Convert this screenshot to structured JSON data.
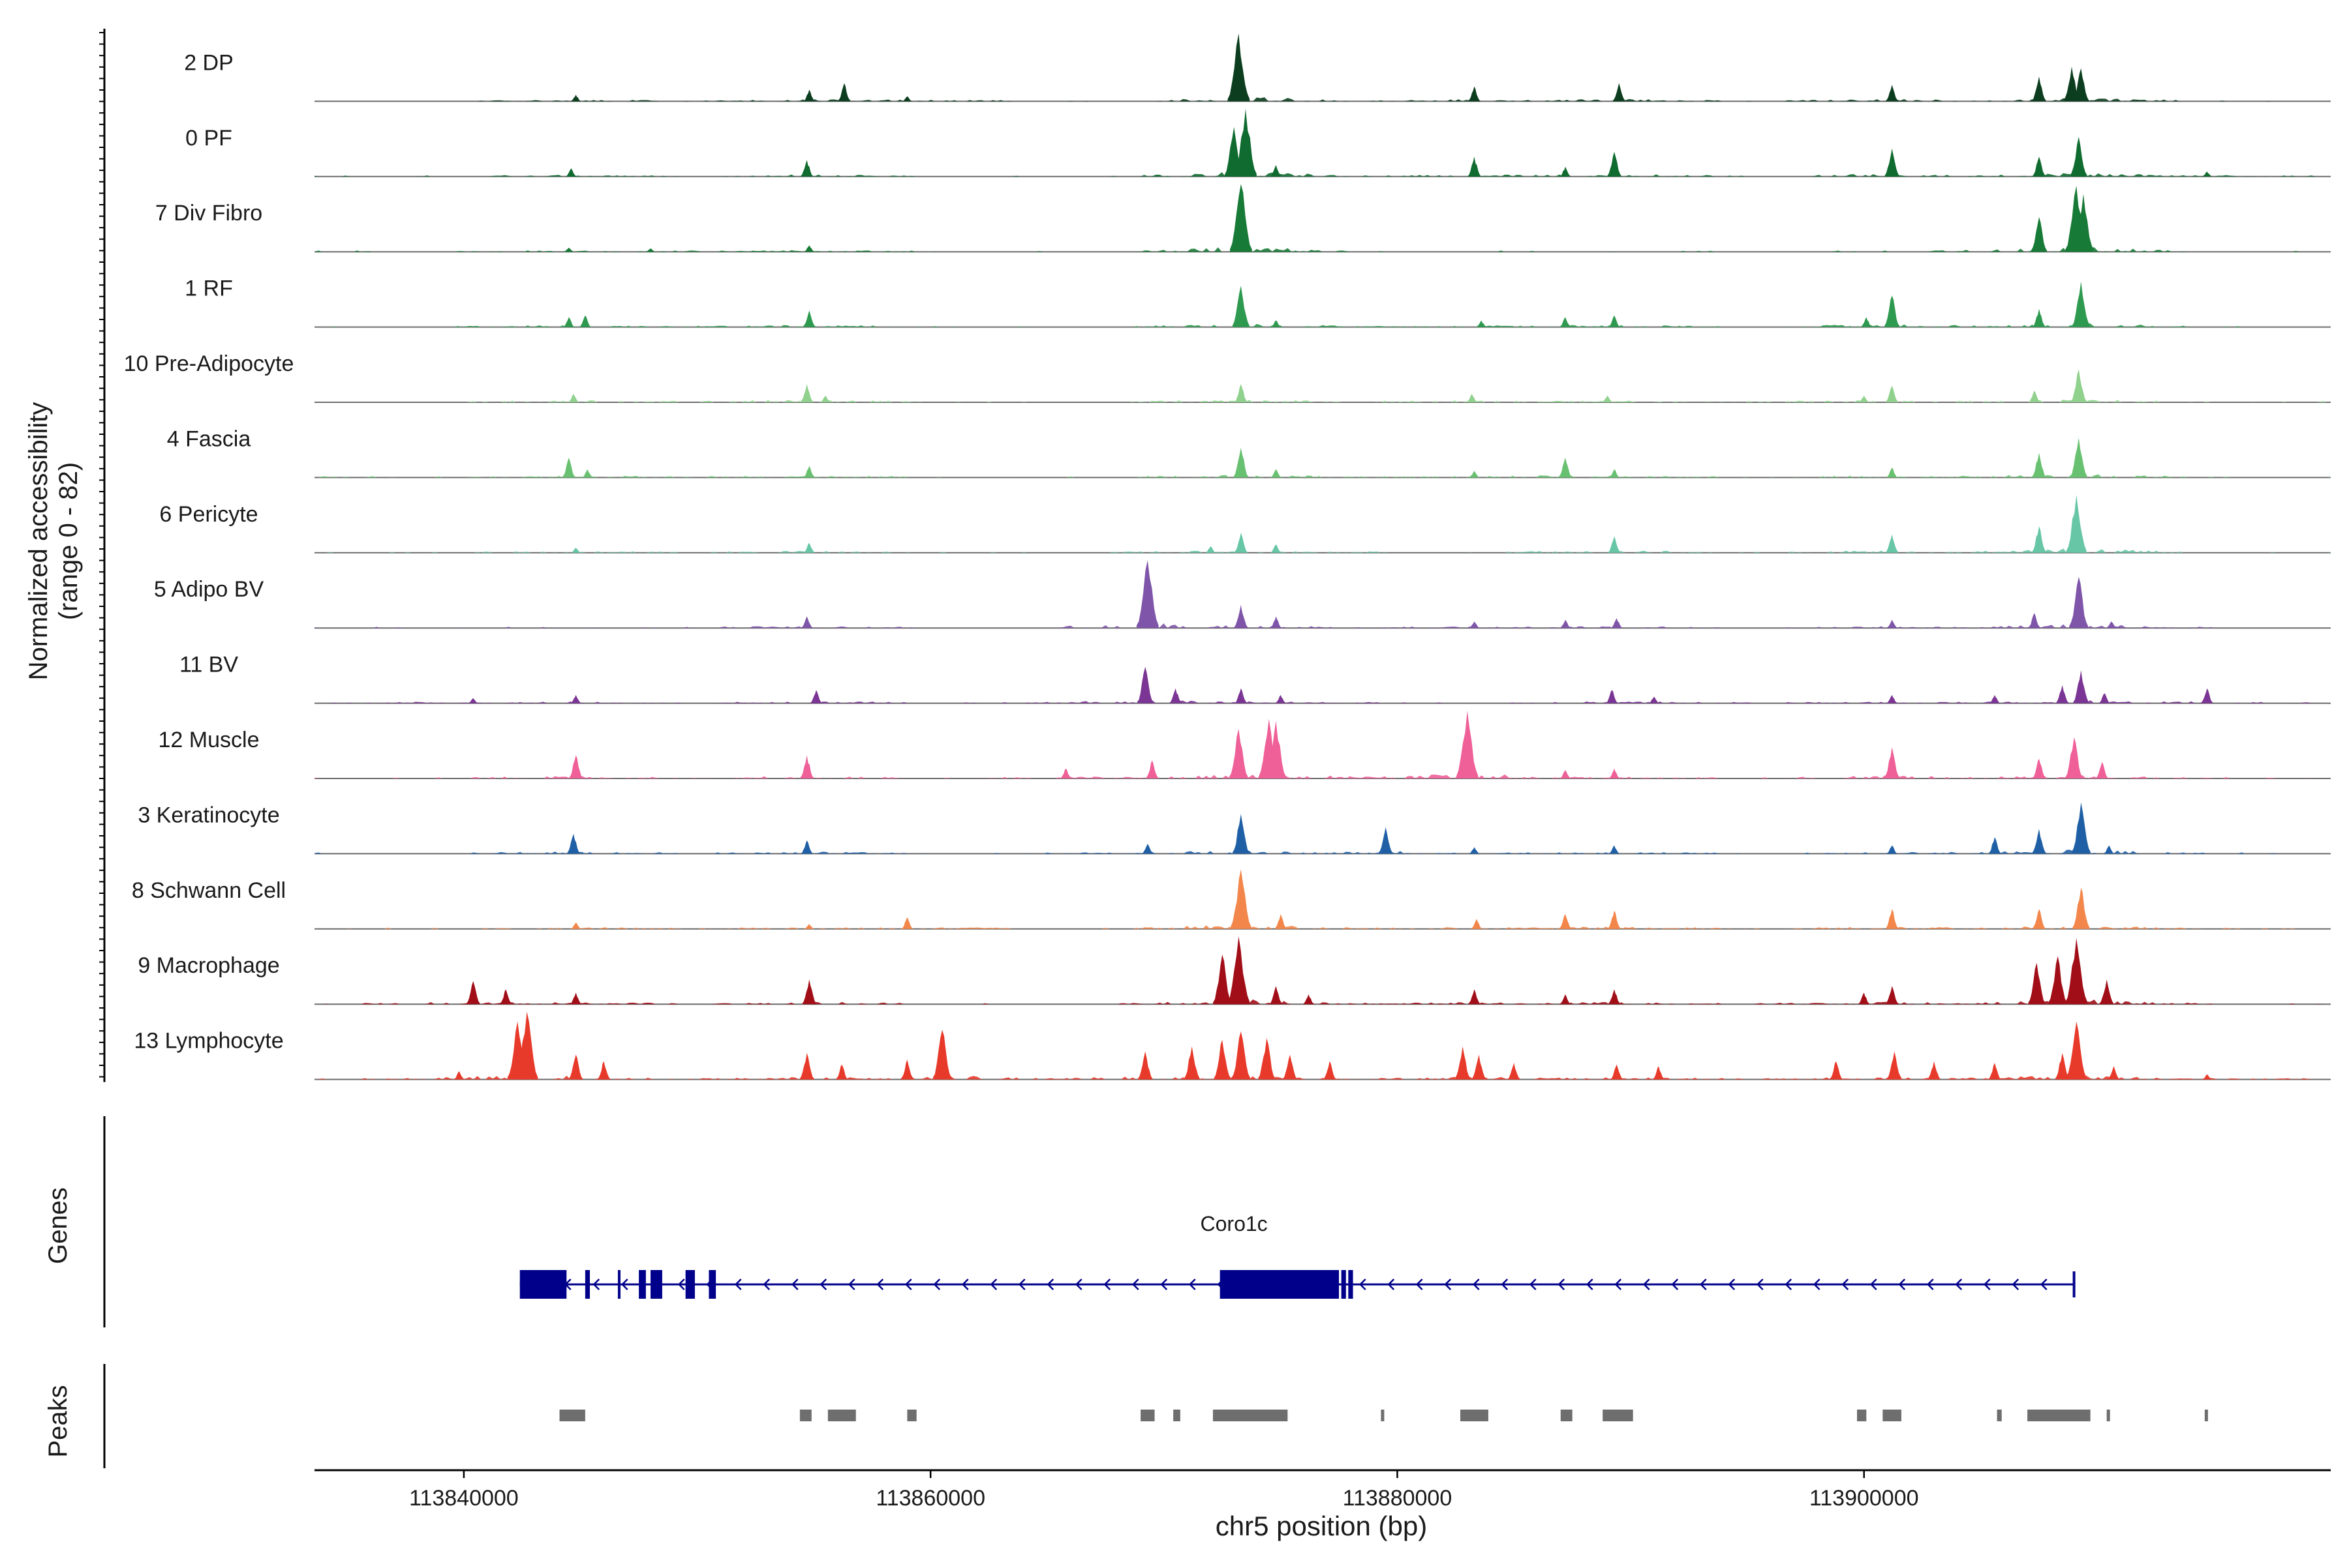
{
  "chart_data": {
    "type": "area",
    "title": "",
    "ylabel": "Normalized accessibility",
    "ylabel_range": "(range 0 - 82)",
    "xlabel": "chr5 position (bp)",
    "xlim": [
      113833600,
      113920000
    ],
    "ylim": [
      0,
      82
    ],
    "x_ticks": [
      113840000,
      113860000,
      113880000,
      113900000
    ],
    "x_tick_labels": [
      "113840000",
      "113860000",
      "113880000",
      "113900000"
    ],
    "tracks": [
      {
        "name": "2 DP",
        "color": "#0b3d1e",
        "peaks": [
          [
            113844800,
            8
          ],
          [
            113854800,
            14
          ],
          [
            113856300,
            22
          ],
          [
            113859000,
            6
          ],
          [
            113873200,
            82
          ],
          [
            113883300,
            18
          ],
          [
            113889500,
            22
          ],
          [
            113901200,
            20
          ],
          [
            113907500,
            30
          ],
          [
            113908900,
            42
          ],
          [
            113909300,
            40
          ]
        ]
      },
      {
        "name": "0 PF",
        "color": "#0f6b2f",
        "peaks": [
          [
            113844600,
            10
          ],
          [
            113854700,
            20
          ],
          [
            113873000,
            60
          ],
          [
            113873500,
            82
          ],
          [
            113874800,
            14
          ],
          [
            113883300,
            24
          ],
          [
            113887200,
            12
          ],
          [
            113889300,
            30
          ],
          [
            113901200,
            34
          ],
          [
            113907500,
            24
          ],
          [
            113909200,
            48
          ],
          [
            113914700,
            6
          ]
        ]
      },
      {
        "name": "7 Div Fibro",
        "color": "#177a36",
        "peaks": [
          [
            113844500,
            5
          ],
          [
            113848000,
            4
          ],
          [
            113854800,
            8
          ],
          [
            113873300,
            82
          ],
          [
            113907500,
            42
          ],
          [
            113909100,
            80
          ],
          [
            113909400,
            70
          ]
        ]
      },
      {
        "name": "1 RF",
        "color": "#2e9a4f",
        "peaks": [
          [
            113844500,
            12
          ],
          [
            113845200,
            14
          ],
          [
            113854800,
            20
          ],
          [
            113873300,
            50
          ],
          [
            113874800,
            8
          ],
          [
            113883600,
            8
          ],
          [
            113887200,
            12
          ],
          [
            113889300,
            14
          ],
          [
            113900100,
            12
          ],
          [
            113901200,
            38
          ],
          [
            113907500,
            22
          ],
          [
            113909300,
            55
          ]
        ]
      },
      {
        "name": "10 Pre-Adipocyte",
        "color": "#8fd18d",
        "peaks": [
          [
            113844700,
            10
          ],
          [
            113854700,
            22
          ],
          [
            113855500,
            8
          ],
          [
            113873300,
            22
          ],
          [
            113883200,
            10
          ],
          [
            113889000,
            8
          ],
          [
            113900000,
            8
          ],
          [
            113901200,
            20
          ],
          [
            113907300,
            14
          ],
          [
            113909200,
            40
          ]
        ]
      },
      {
        "name": "4 Fascia",
        "color": "#68c170",
        "peaks": [
          [
            113844500,
            24
          ],
          [
            113845300,
            10
          ],
          [
            113854800,
            14
          ],
          [
            113873300,
            36
          ],
          [
            113874800,
            10
          ],
          [
            113883300,
            8
          ],
          [
            113887200,
            24
          ],
          [
            113889300,
            10
          ],
          [
            113901200,
            12
          ],
          [
            113907500,
            30
          ],
          [
            113909200,
            48
          ]
        ]
      },
      {
        "name": "6 Pericyte",
        "color": "#66c6a6",
        "peaks": [
          [
            113844800,
            6
          ],
          [
            113854800,
            12
          ],
          [
            113872000,
            8
          ],
          [
            113873300,
            24
          ],
          [
            113874800,
            10
          ],
          [
            113889300,
            20
          ],
          [
            113901200,
            22
          ],
          [
            113907500,
            32
          ],
          [
            113909100,
            70
          ]
        ]
      },
      {
        "name": "5 Adipo BV",
        "color": "#7e55a9",
        "peaks": [
          [
            113854700,
            14
          ],
          [
            113869300,
            82
          ],
          [
            113873300,
            28
          ],
          [
            113874800,
            14
          ],
          [
            113883300,
            8
          ],
          [
            113887200,
            10
          ],
          [
            113889400,
            12
          ],
          [
            113901200,
            10
          ],
          [
            113907300,
            18
          ],
          [
            113909200,
            62
          ],
          [
            113910600,
            8
          ]
        ]
      },
      {
        "name": "11 BV",
        "color": "#7b3594",
        "peaks": [
          [
            113840400,
            6
          ],
          [
            113844800,
            10
          ],
          [
            113855100,
            16
          ],
          [
            113869200,
            44
          ],
          [
            113870500,
            18
          ],
          [
            113873300,
            18
          ],
          [
            113875000,
            10
          ],
          [
            113889200,
            16
          ],
          [
            113891000,
            8
          ],
          [
            113901200,
            10
          ],
          [
            113905600,
            10
          ],
          [
            113908500,
            22
          ],
          [
            113909300,
            40
          ],
          [
            113910300,
            12
          ],
          [
            113914700,
            18
          ]
        ]
      },
      {
        "name": "12 Muscle",
        "color": "#ef5f98",
        "peaks": [
          [
            113844800,
            28
          ],
          [
            113854700,
            28
          ],
          [
            113865800,
            12
          ],
          [
            113869500,
            22
          ],
          [
            113873200,
            60
          ],
          [
            113874500,
            72
          ],
          [
            113874800,
            70
          ],
          [
            113883000,
            82
          ],
          [
            113887200,
            10
          ],
          [
            113889300,
            12
          ],
          [
            113901200,
            38
          ],
          [
            113907500,
            24
          ],
          [
            113909000,
            50
          ],
          [
            113910200,
            20
          ]
        ]
      },
      {
        "name": "3 Keratinocyte",
        "color": "#1f5fa6",
        "peaks": [
          [
            113844700,
            24
          ],
          [
            113854700,
            16
          ],
          [
            113869300,
            12
          ],
          [
            113873300,
            48
          ],
          [
            113879500,
            32
          ],
          [
            113883300,
            8
          ],
          [
            113889300,
            10
          ],
          [
            113901200,
            10
          ],
          [
            113905600,
            20
          ],
          [
            113907500,
            30
          ],
          [
            113909300,
            62
          ],
          [
            113910500,
            10
          ]
        ]
      },
      {
        "name": "8 Schwann Cell",
        "color": "#f3864a",
        "peaks": [
          [
            113844800,
            8
          ],
          [
            113854800,
            6
          ],
          [
            113859000,
            14
          ],
          [
            113873300,
            72
          ],
          [
            113875000,
            18
          ],
          [
            113883400,
            12
          ],
          [
            113887200,
            18
          ],
          [
            113889300,
            22
          ],
          [
            113901200,
            24
          ],
          [
            113907500,
            24
          ],
          [
            113909300,
            50
          ]
        ]
      },
      {
        "name": "9 Macrophage",
        "color": "#a10e18",
        "peaks": [
          [
            113840400,
            28
          ],
          [
            113841800,
            18
          ],
          [
            113844800,
            14
          ],
          [
            113854800,
            30
          ],
          [
            113872500,
            60
          ],
          [
            113873200,
            82
          ],
          [
            113874800,
            22
          ],
          [
            113876200,
            12
          ],
          [
            113883300,
            18
          ],
          [
            113887200,
            12
          ],
          [
            113889300,
            18
          ],
          [
            113900000,
            14
          ],
          [
            113901200,
            22
          ],
          [
            113907400,
            50
          ],
          [
            113908300,
            58
          ],
          [
            113909100,
            80
          ],
          [
            113910400,
            30
          ]
        ]
      },
      {
        "name": "13 Lymphocyte",
        "color": "#e83a2b",
        "peaks": [
          [
            113839800,
            10
          ],
          [
            113842300,
            70
          ],
          [
            113842700,
            82
          ],
          [
            113844800,
            30
          ],
          [
            113846000,
            22
          ],
          [
            113854700,
            32
          ],
          [
            113856200,
            18
          ],
          [
            113859000,
            24
          ],
          [
            113860500,
            60
          ],
          [
            113869200,
            34
          ],
          [
            113871200,
            40
          ],
          [
            113872500,
            48
          ],
          [
            113873300,
            58
          ],
          [
            113874400,
            50
          ],
          [
            113875400,
            30
          ],
          [
            113877100,
            22
          ],
          [
            113882800,
            40
          ],
          [
            113883500,
            30
          ],
          [
            113885000,
            20
          ],
          [
            113889400,
            18
          ],
          [
            113891200,
            16
          ],
          [
            113898800,
            22
          ],
          [
            113901300,
            34
          ],
          [
            113903000,
            22
          ],
          [
            113905600,
            20
          ],
          [
            113908500,
            32
          ],
          [
            113909100,
            70
          ],
          [
            113910700,
            16
          ],
          [
            113914700,
            6
          ]
        ]
      }
    ],
    "genes_label": "Genes",
    "gene": {
      "name": "Coro1c",
      "strand": "-",
      "start": 113842400,
      "end": 113909000,
      "color": "#00008b",
      "exons": [
        [
          113842400,
          113844400
        ],
        [
          113845200,
          113845400
        ],
        [
          113846600,
          113846700
        ],
        [
          113847500,
          113847800
        ],
        [
          113848000,
          113848500
        ],
        [
          113849500,
          113849900
        ],
        [
          113850500,
          113850800
        ],
        [
          113872400,
          113877500
        ],
        [
          113877600,
          113877800
        ],
        [
          113877900,
          113878100
        ]
      ]
    },
    "peaks_label": "Peaks",
    "peak_color": "#6e6e6e",
    "peak_regions": [
      [
        113844100,
        113845200
      ],
      [
        113854400,
        113854900
      ],
      [
        113855600,
        113856800
      ],
      [
        113859000,
        113859400
      ],
      [
        113869000,
        113869600
      ],
      [
        113870400,
        113870700
      ],
      [
        113872100,
        113875300
      ],
      [
        113879300,
        113879400
      ],
      [
        113882700,
        113883900
      ],
      [
        113887000,
        113887500
      ],
      [
        113888800,
        113890100
      ],
      [
        113899700,
        113900100
      ],
      [
        113900800,
        113901600
      ],
      [
        113905700,
        113905900
      ],
      [
        113907000,
        113909700
      ],
      [
        113910400,
        113910500
      ],
      [
        113914600,
        113914700
      ]
    ]
  }
}
